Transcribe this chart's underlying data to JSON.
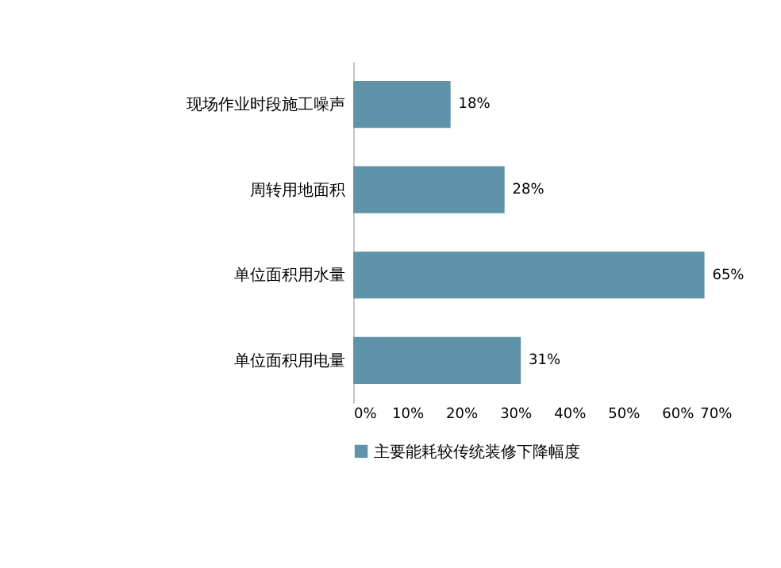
{
  "chart_data": {
    "type": "bar",
    "orientation": "horizontal",
    "categories": [
      "现场作业时段施工噪声",
      "周转用地面积",
      "单位面积用水量",
      "单位面积用电量"
    ],
    "series": [
      {
        "name": "主要能耗较传统装修下降幅度",
        "color": "#5f93a9",
        "values": [
          18,
          28,
          65,
          31
        ],
        "value_labels": [
          "18%",
          "28%",
          "65%",
          "31%"
        ]
      }
    ],
    "xlim": [
      0,
      70
    ],
    "xticks": [
      {
        "value": 0,
        "label": "0%"
      },
      {
        "value": 10,
        "label": "10%"
      },
      {
        "value": 20,
        "label": "20%"
      },
      {
        "value": 30,
        "label": "30%"
      },
      {
        "value": 40,
        "label": "40%"
      },
      {
        "value": 50,
        "label": "50%"
      },
      {
        "value": 60,
        "label": "60%"
      },
      {
        "value": 70,
        "label": "70%"
      }
    ],
    "grid": false,
    "legend": "bottom"
  }
}
